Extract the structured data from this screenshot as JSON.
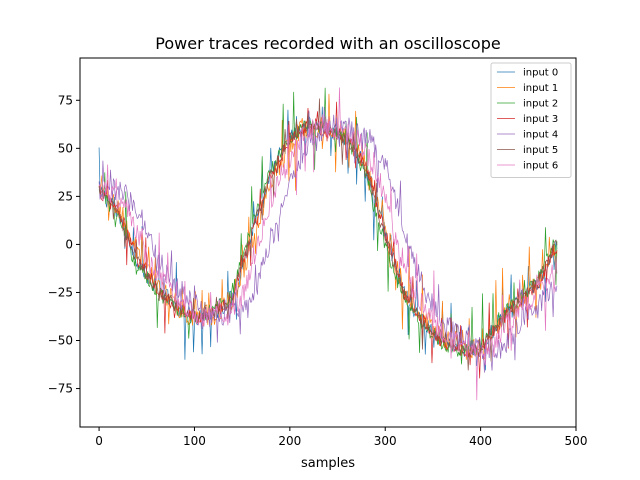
{
  "chart_data": {
    "type": "line",
    "title": "Power traces recorded with an oscilloscope",
    "xlabel": "samples",
    "ylabel": "",
    "xlim": [
      -20,
      500
    ],
    "ylim": [
      -95,
      97
    ],
    "xticks": [
      0,
      100,
      200,
      300,
      400,
      500
    ],
    "yticks": [
      -75,
      -50,
      -25,
      0,
      25,
      50,
      75
    ],
    "grid": false,
    "legend_position": "top-right",
    "series": [
      {
        "name": "input 0",
        "color": "#1f77b4",
        "offset": 0,
        "noise": 5,
        "spike_every": 9,
        "spike_amp": 22
      },
      {
        "name": "input 1",
        "color": "#ff7f0e",
        "offset": 2,
        "noise": 6,
        "spike_every": 7,
        "spike_amp": 24
      },
      {
        "name": "input 2",
        "color": "#2ca02c",
        "offset": -3,
        "noise": 4,
        "spike_every": 11,
        "spike_amp": 26
      },
      {
        "name": "input 3",
        "color": "#d62728",
        "offset": 0,
        "noise": 4,
        "spike_every": 10,
        "spike_amp": 20
      },
      {
        "name": "input 4",
        "color": "#9467bd",
        "offset": 22,
        "noise": 6,
        "spike_every": 8,
        "spike_amp": 18
      },
      {
        "name": "input 5",
        "color": "#8c564b",
        "offset": -1,
        "noise": 3,
        "spike_every": 12,
        "spike_amp": 15
      },
      {
        "name": "input 6",
        "color": "#e377c2",
        "offset": 10,
        "noise": 6,
        "spike_every": 9,
        "spike_amp": 22
      }
    ],
    "base_curve": {
      "x": [
        0,
        20,
        40,
        60,
        80,
        100,
        120,
        140,
        160,
        180,
        200,
        220,
        240,
        260,
        280,
        300,
        320,
        340,
        360,
        380,
        400,
        420,
        440,
        460,
        480
      ],
      "y": [
        28,
        18,
        -8,
        -22,
        -32,
        -38,
        -36,
        -28,
        5,
        35,
        55,
        62,
        60,
        55,
        40,
        5,
        -25,
        -40,
        -50,
        -55,
        -55,
        -40,
        -30,
        -20,
        0
      ]
    },
    "n_samples": 481
  }
}
